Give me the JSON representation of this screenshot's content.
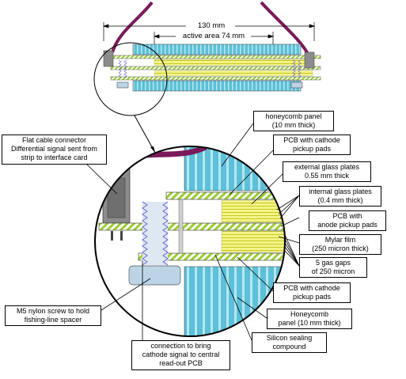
{
  "dimensions": {
    "overall_width": "130 mm",
    "active_area": "active area 74 mm"
  },
  "labels": {
    "flat_cable_connector": "Flat cable connector\nDifferential signal sent from\nstrip to interface card",
    "m5_nylon_screw": "M5 nylon screw to hold\nfishing-line spacer",
    "connection_cathode": "connection to bring\ncathode signal to central\nread-out PCB",
    "honeycomb_panel_top": "honeycomb panel\n(10 mm thick)",
    "pcb_cathode_top": "PCB with cathode\npickup pads",
    "external_glass": "external glass plates\n0.55 mm thick",
    "internal_glass": "internal glass plates\n(0.4 mm thick)",
    "pcb_anode": "PCB with\nanode pickup pads",
    "mylar_film": "Mylar film\n(250 micron thick)",
    "gas_gaps": "5 gas gaps\nof 250 micron",
    "pcb_cathode_bottom": "PCB with cathode\npickup pads",
    "honeycomb_panel_bottom": "Honeycomb\npanel (10 mm thick)",
    "silicon_compound": "Silicon sealing\ncompound"
  },
  "colors": {
    "honeycomb": "#5bc0d8",
    "honeycomb_stripe": "#b8e6f0",
    "pcb_green": "#9acd32",
    "glass_yellow": "#e8e84a",
    "cable_purple": "#7b1a5a",
    "connector_gray": "#8c8c8c",
    "screw_blue": "#bcd4e6",
    "screw_thread": "#6a5acd"
  }
}
